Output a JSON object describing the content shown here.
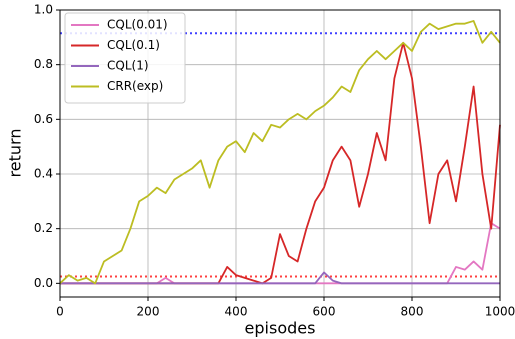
{
  "chart_data": {
    "type": "line",
    "x_label": "episodes",
    "y_label": "return",
    "x": [
      0,
      20,
      40,
      60,
      80,
      100,
      120,
      140,
      160,
      180,
      200,
      220,
      240,
      260,
      280,
      300,
      320,
      340,
      360,
      380,
      400,
      420,
      440,
      460,
      480,
      500,
      520,
      540,
      560,
      580,
      600,
      620,
      640,
      660,
      680,
      700,
      720,
      740,
      760,
      780,
      800,
      820,
      840,
      860,
      880,
      900,
      920,
      940,
      960,
      980,
      1000
    ],
    "series": [
      {
        "name": "CQL(0.01)",
        "color": "#e377c2",
        "values": [
          0,
          0,
          0,
          0,
          0,
          0,
          0,
          0,
          0,
          0,
          0,
          0,
          0.02,
          0,
          0,
          0,
          0,
          0,
          0,
          0,
          0,
          0,
          0,
          0,
          0,
          0,
          0,
          0,
          0,
          0,
          0,
          0,
          0,
          0,
          0,
          0,
          0,
          0,
          0,
          0,
          0,
          0,
          0,
          0,
          0,
          0.06,
          0.05,
          0.08,
          0.05,
          0.22,
          0.2
        ]
      },
      {
        "name": "CQL(0.1)",
        "color": "#d62728",
        "values": [
          0,
          0,
          0,
          0,
          0,
          0,
          0,
          0,
          0,
          0,
          0,
          0,
          0,
          0,
          0,
          0,
          0,
          0,
          0,
          0.06,
          0.03,
          0.02,
          0.01,
          0,
          0.02,
          0.18,
          0.1,
          0.08,
          0.2,
          0.3,
          0.35,
          0.45,
          0.5,
          0.45,
          0.28,
          0.4,
          0.55,
          0.45,
          0.75,
          0.88,
          0.75,
          0.5,
          0.22,
          0.4,
          0.45,
          0.3,
          0.5,
          0.72,
          0.4,
          0.2,
          0.58
        ]
      },
      {
        "name": "CQL(1)",
        "color": "#9467bd",
        "values": [
          0,
          0,
          0,
          0,
          0,
          0,
          0,
          0,
          0,
          0,
          0,
          0,
          0,
          0,
          0,
          0,
          0,
          0,
          0,
          0,
          0,
          0,
          0,
          0,
          0,
          0,
          0,
          0,
          0,
          0,
          0.04,
          0.01,
          0,
          0,
          0,
          0,
          0,
          0,
          0,
          0,
          0,
          0,
          0,
          0,
          0,
          0,
          0,
          0,
          0,
          0,
          0
        ]
      },
      {
        "name": "CRR(exp)",
        "color": "#bcbd22",
        "values": [
          0,
          0.03,
          0.01,
          0.02,
          0,
          0.08,
          0.1,
          0.12,
          0.2,
          0.3,
          0.32,
          0.35,
          0.33,
          0.38,
          0.4,
          0.42,
          0.45,
          0.35,
          0.45,
          0.5,
          0.52,
          0.48,
          0.55,
          0.52,
          0.58,
          0.57,
          0.6,
          0.62,
          0.6,
          0.63,
          0.65,
          0.68,
          0.72,
          0.7,
          0.78,
          0.82,
          0.85,
          0.82,
          0.85,
          0.88,
          0.85,
          0.92,
          0.95,
          0.93,
          0.94,
          0.95,
          0.95,
          0.96,
          0.88,
          0.92,
          0.88
        ]
      }
    ],
    "hlines": [
      {
        "value": 0.915,
        "color": "#4040ff"
      },
      {
        "value": 0.025,
        "color": "#ff4040"
      }
    ],
    "xlim": [
      0,
      1000
    ],
    "xticks": [
      0,
      200,
      400,
      600,
      800,
      1000
    ],
    "ylim": [
      -0.05,
      1.0
    ],
    "yticks": [
      {
        "value": 0,
        "label": "0.0"
      },
      0.2,
      0.4,
      0.6,
      0.8,
      {
        "value": 1,
        "label": "1.0"
      }
    ],
    "grid": true,
    "legend": "upper-left"
  }
}
